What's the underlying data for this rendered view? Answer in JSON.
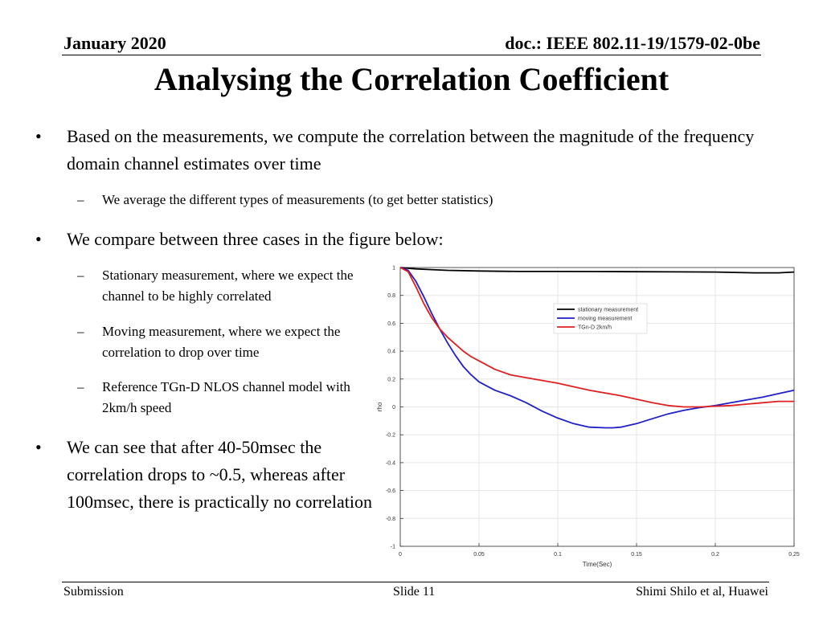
{
  "header": {
    "date": "January 2020",
    "doc": "doc.: IEEE 802.11-19/1579-02-0be"
  },
  "title": "Analysing the Correlation Coefficient",
  "bullets": {
    "b1": "Based on the measurements, we compute the correlation between the magnitude of the frequency domain channel estimates over time",
    "b1_sub": "We average the different types of measurements (to get better statistics)",
    "b2": "We compare between three cases in the figure below:",
    "b2_subs": [
      "Stationary measurement, where we expect the channel to be highly correlated",
      "Moving measurement, where we expect the correlation to drop over time",
      "Reference TGn-D NLOS channel model with 2km/h speed"
    ],
    "b3": "We can see that after 40-50msec the correlation drops to ~0.5, whereas after 100msec, there is practically no correlation",
    "marker": "•",
    "dash": "–"
  },
  "footer": {
    "left": "Submission",
    "center": "Slide 11",
    "right": "Shimi Shilo et al, Huawei"
  },
  "chart_data": {
    "type": "line",
    "xlabel": "Time(Sec)",
    "ylabel": "rho",
    "xlim": [
      0,
      0.25
    ],
    "ylim": [
      -1,
      1
    ],
    "x_ticks": [
      "0",
      "0.05",
      "0.1",
      "0.15",
      "0.2",
      "0.25"
    ],
    "y_ticks": [
      "1",
      "0.8",
      "0.6",
      "0.4",
      "0.2",
      "0",
      "-0.2",
      "-0.4",
      "-0.6",
      "-0.8",
      "-1"
    ],
    "grid": true,
    "legend_position": "top-right",
    "series": [
      {
        "name": "stationary measurement",
        "color": "#000000",
        "x": [
          0,
          0.005,
          0.01,
          0.02,
          0.03,
          0.05,
          0.075,
          0.1,
          0.125,
          0.15,
          0.175,
          0.2,
          0.225,
          0.24,
          0.25
        ],
        "y": [
          1,
          0.995,
          0.99,
          0.985,
          0.98,
          0.975,
          0.972,
          0.972,
          0.971,
          0.97,
          0.969,
          0.968,
          0.962,
          0.962,
          0.968
        ]
      },
      {
        "name": "moving measurement",
        "color": "#1f1fcc",
        "x": [
          0,
          0.005,
          0.01,
          0.015,
          0.02,
          0.025,
          0.03,
          0.035,
          0.04,
          0.045,
          0.05,
          0.06,
          0.07,
          0.08,
          0.09,
          0.1,
          0.11,
          0.12,
          0.13,
          0.135,
          0.14,
          0.15,
          0.16,
          0.17,
          0.18,
          0.19,
          0.2,
          0.21,
          0.22,
          0.23,
          0.24,
          0.25
        ],
        "y": [
          1,
          0.98,
          0.9,
          0.79,
          0.67,
          0.56,
          0.46,
          0.37,
          0.29,
          0.23,
          0.18,
          0.12,
          0.08,
          0.03,
          -0.03,
          -0.08,
          -0.12,
          -0.145,
          -0.15,
          -0.15,
          -0.145,
          -0.12,
          -0.085,
          -0.05,
          -0.025,
          -0.005,
          0.01,
          0.03,
          0.05,
          0.07,
          0.095,
          0.12
        ]
      },
      {
        "name": "TGn-D 2km/h",
        "color": "#e02020",
        "x": [
          0,
          0.005,
          0.01,
          0.015,
          0.02,
          0.025,
          0.03,
          0.035,
          0.04,
          0.045,
          0.05,
          0.06,
          0.07,
          0.08,
          0.1,
          0.12,
          0.14,
          0.16,
          0.17,
          0.18,
          0.19,
          0.2,
          0.21,
          0.22,
          0.23,
          0.24,
          0.25
        ],
        "y": [
          1,
          0.97,
          0.86,
          0.74,
          0.64,
          0.56,
          0.5,
          0.45,
          0.4,
          0.36,
          0.33,
          0.27,
          0.23,
          0.21,
          0.17,
          0.12,
          0.08,
          0.03,
          0.01,
          0.0,
          0.0,
          0.005,
          0.01,
          0.02,
          0.03,
          0.04,
          0.04
        ]
      }
    ]
  }
}
